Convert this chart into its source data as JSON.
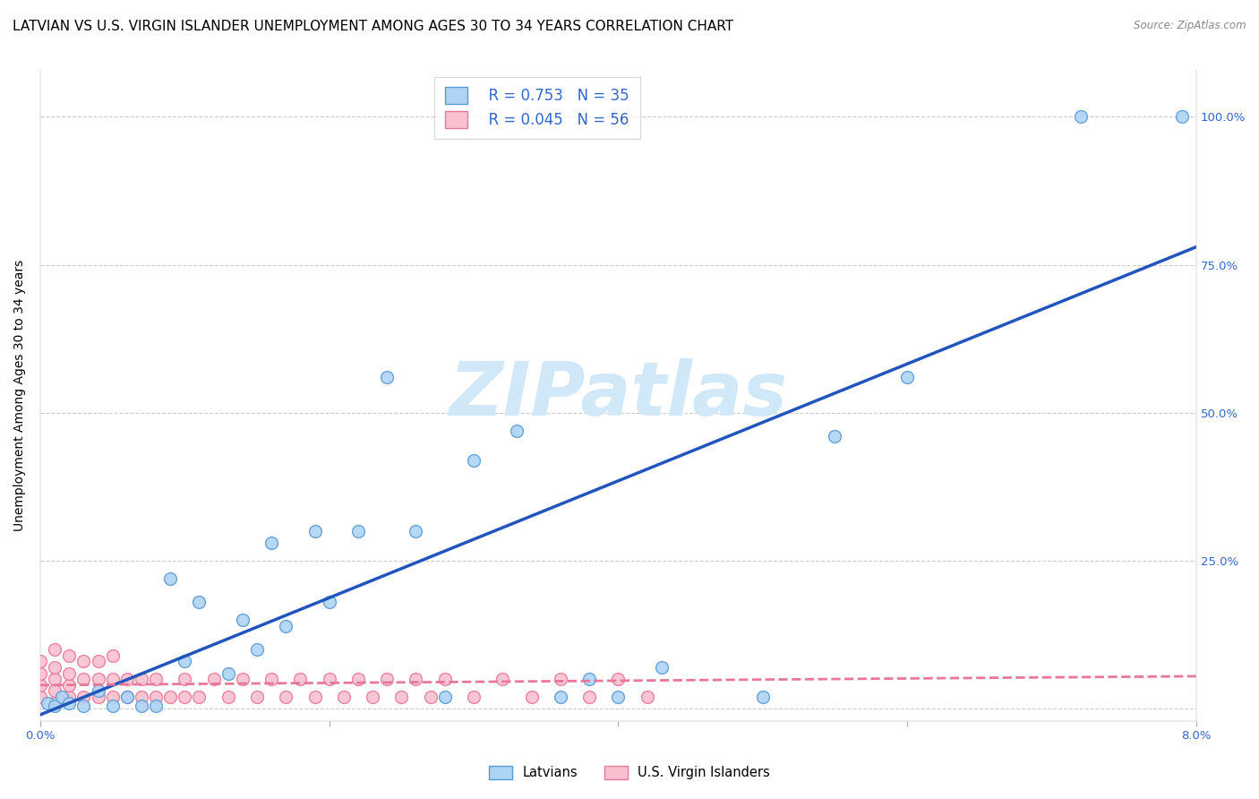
{
  "title": "LATVIAN VS U.S. VIRGIN ISLANDER UNEMPLOYMENT AMONG AGES 30 TO 34 YEARS CORRELATION CHART",
  "source": "Source: ZipAtlas.com",
  "ylabel": "Unemployment Among Ages 30 to 34 years",
  "xlim": [
    0.0,
    0.08
  ],
  "ylim": [
    -0.02,
    1.08
  ],
  "xticks": [
    0.0,
    0.02,
    0.04,
    0.06,
    0.08
  ],
  "xticklabels": [
    "0.0%",
    "",
    "",
    "",
    "8.0%"
  ],
  "ytick_positions": [
    0.0,
    0.25,
    0.5,
    0.75,
    1.0
  ],
  "right_yticklabels": [
    "",
    "25.0%",
    "50.0%",
    "75.0%",
    "100.0%"
  ],
  "latvian_color": "#add4f5",
  "latvian_edge_color": "#5b9bd5",
  "virgin_color": "#f9c0d0",
  "virgin_edge_color": "#e8789a",
  "blue_line_color": "#2255bb",
  "pink_line_color": "#e8789a",
  "grid_color": "#cccccc",
  "watermark_text": "ZIPatlas",
  "watermark_color": "#d0e8f8",
  "legend_R_latvian": "R = 0.753",
  "legend_N_latvian": "N = 35",
  "legend_R_virgin": "R = 0.045",
  "legend_N_virgin": "N = 56",
  "latvian_x": [
    0.0005,
    0.001,
    0.0015,
    0.002,
    0.003,
    0.004,
    0.005,
    0.006,
    0.007,
    0.009,
    0.01,
    0.011,
    0.013,
    0.014,
    0.015,
    0.016,
    0.017,
    0.019,
    0.02,
    0.022,
    0.024,
    0.026,
    0.028,
    0.03,
    0.033,
    0.036,
    0.038,
    0.04,
    0.043,
    0.05,
    0.055,
    0.06,
    0.072,
    0.079,
    0.008
  ],
  "latvian_y": [
    0.01,
    0.005,
    0.02,
    0.01,
    0.005,
    0.03,
    0.005,
    0.02,
    0.005,
    0.22,
    0.08,
    0.18,
    0.06,
    0.15,
    0.1,
    0.28,
    0.14,
    0.3,
    0.18,
    0.3,
    0.56,
    0.3,
    0.02,
    0.42,
    0.47,
    0.02,
    0.05,
    0.02,
    0.07,
    0.02,
    0.46,
    0.56,
    1.0,
    1.0,
    0.005
  ],
  "virgin_x": [
    0.0,
    0.0,
    0.0,
    0.0,
    0.001,
    0.001,
    0.001,
    0.001,
    0.001,
    0.002,
    0.002,
    0.002,
    0.002,
    0.003,
    0.003,
    0.003,
    0.004,
    0.004,
    0.004,
    0.005,
    0.005,
    0.005,
    0.006,
    0.006,
    0.007,
    0.007,
    0.008,
    0.008,
    0.009,
    0.01,
    0.01,
    0.011,
    0.012,
    0.013,
    0.014,
    0.015,
    0.016,
    0.017,
    0.018,
    0.019,
    0.02,
    0.021,
    0.022,
    0.023,
    0.024,
    0.025,
    0.026,
    0.027,
    0.028,
    0.03,
    0.032,
    0.034,
    0.036,
    0.038,
    0.04,
    0.042
  ],
  "virgin_y": [
    0.02,
    0.04,
    0.06,
    0.08,
    0.01,
    0.03,
    0.05,
    0.07,
    0.1,
    0.02,
    0.04,
    0.06,
    0.09,
    0.02,
    0.05,
    0.08,
    0.02,
    0.05,
    0.08,
    0.02,
    0.05,
    0.09,
    0.02,
    0.05,
    0.02,
    0.05,
    0.02,
    0.05,
    0.02,
    0.02,
    0.05,
    0.02,
    0.05,
    0.02,
    0.05,
    0.02,
    0.05,
    0.02,
    0.05,
    0.02,
    0.05,
    0.02,
    0.05,
    0.02,
    0.05,
    0.02,
    0.05,
    0.02,
    0.05,
    0.02,
    0.05,
    0.02,
    0.05,
    0.02,
    0.05,
    0.02
  ],
  "latvian_line_x": [
    0.0,
    0.08
  ],
  "latvian_line_y": [
    -0.01,
    0.78
  ],
  "virgin_line_x": [
    0.0,
    0.08
  ],
  "virgin_line_y": [
    0.04,
    0.055
  ],
  "marker_size": 100,
  "title_fontsize": 11,
  "axis_label_fontsize": 10,
  "tick_fontsize": 9.5,
  "legend_fontsize": 12
}
